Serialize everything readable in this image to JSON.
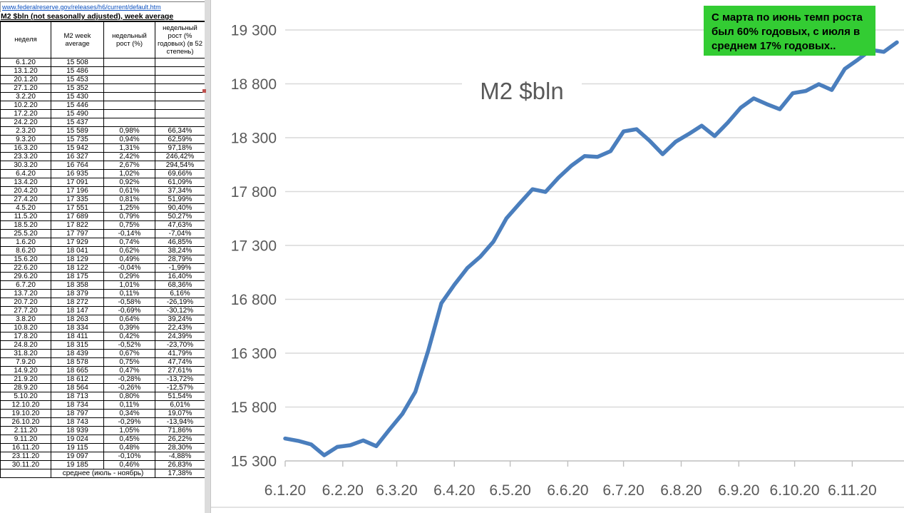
{
  "source_link": "www.federalreserve.gov/releases/h6/current/default.htm",
  "table": {
    "title": "M2 $bln (not seasonally adjusted), week average",
    "columns": [
      "неделя",
      "M2 week average",
      "недельный рост (%)",
      "недельный рост (% годовых) (в 52 степень)"
    ],
    "rows": [
      [
        "6.1.20",
        "15 508",
        "",
        ""
      ],
      [
        "13.1.20",
        "15 486",
        "",
        ""
      ],
      [
        "20.1.20",
        "15 453",
        "",
        ""
      ],
      [
        "27.1.20",
        "15 352",
        "",
        ""
      ],
      [
        "3.2.20",
        "15 430",
        "",
        ""
      ],
      [
        "10.2.20",
        "15 446",
        "",
        ""
      ],
      [
        "17.2.20",
        "15 490",
        "",
        ""
      ],
      [
        "24.2.20",
        "15 437",
        "",
        ""
      ],
      [
        "2.3.20",
        "15 589",
        "0,98%",
        "66,34%"
      ],
      [
        "9.3.20",
        "15 735",
        "0,94%",
        "62,59%"
      ],
      [
        "16.3.20",
        "15 942",
        "1,31%",
        "97,18%"
      ],
      [
        "23.3.20",
        "16 327",
        "2,42%",
        "246,42%"
      ],
      [
        "30.3.20",
        "16 764",
        "2,67%",
        "294,54%"
      ],
      [
        "6.4.20",
        "16 935",
        "1,02%",
        "69,66%"
      ],
      [
        "13.4.20",
        "17 091",
        "0,92%",
        "61,09%"
      ],
      [
        "20.4.20",
        "17 196",
        "0,61%",
        "37,34%"
      ],
      [
        "27.4.20",
        "17 335",
        "0,81%",
        "51,99%"
      ],
      [
        "4.5.20",
        "17 551",
        "1,25%",
        "90,40%"
      ],
      [
        "11.5.20",
        "17 689",
        "0,79%",
        "50,27%"
      ],
      [
        "18.5.20",
        "17 822",
        "0,75%",
        "47,63%"
      ],
      [
        "25.5.20",
        "17 797",
        "-0,14%",
        "-7,04%"
      ],
      [
        "1.6.20",
        "17 929",
        "0,74%",
        "46,85%"
      ],
      [
        "8.6.20",
        "18 041",
        "0,62%",
        "38,24%"
      ],
      [
        "15.6.20",
        "18 129",
        "0,49%",
        "28,79%"
      ],
      [
        "22.6.20",
        "18 122",
        "-0,04%",
        "-1,99%"
      ],
      [
        "29.6.20",
        "18 175",
        "0,29%",
        "16,40%"
      ],
      [
        "6.7.20",
        "18 358",
        "1,01%",
        "68,36%"
      ],
      [
        "13.7.20",
        "18 379",
        "0,11%",
        "6,16%"
      ],
      [
        "20.7.20",
        "18 272",
        "-0,58%",
        "-26,19%"
      ],
      [
        "27.7.20",
        "18 147",
        "-0,69%",
        "-30,12%"
      ],
      [
        "3.8.20",
        "18 263",
        "0,64%",
        "39,24%"
      ],
      [
        "10.8.20",
        "18 334",
        "0,39%",
        "22,43%"
      ],
      [
        "17.8.20",
        "18 411",
        "0,42%",
        "24,39%"
      ],
      [
        "24.8.20",
        "18 315",
        "-0,52%",
        "-23,70%"
      ],
      [
        "31.8.20",
        "18 439",
        "0,67%",
        "41,79%"
      ],
      [
        "7.9.20",
        "18 578",
        "0,75%",
        "47,74%"
      ],
      [
        "14.9.20",
        "18 665",
        "0,47%",
        "27,61%"
      ],
      [
        "21.9.20",
        "18 612",
        "-0,28%",
        "-13,72%"
      ],
      [
        "28.9.20",
        "18 564",
        "-0,26%",
        "-12,57%"
      ],
      [
        "5.10.20",
        "18 713",
        "0,80%",
        "51,54%"
      ],
      [
        "12.10.20",
        "18 734",
        "0,11%",
        "6,01%"
      ],
      [
        "19.10.20",
        "18 797",
        "0,34%",
        "19,07%"
      ],
      [
        "26.10.20",
        "18 743",
        "-0,29%",
        "-13,94%"
      ],
      [
        "2.11.20",
        "18 939",
        "1,05%",
        "71,86%"
      ],
      [
        "9.11.20",
        "19 024",
        "0,45%",
        "26,22%"
      ],
      [
        "16.11.20",
        "19 115",
        "0,48%",
        "28,30%"
      ],
      [
        "23.11.20",
        "19 097",
        "-0,10%",
        "-4,88%"
      ],
      [
        "30.11.20",
        "19 185",
        "0,46%",
        "26,83%"
      ]
    ],
    "footer": {
      "label": "среднее (июль - ноябрь)",
      "value": "17,38%"
    }
  },
  "annotation": {
    "text": "С марта по июнь темп роста был 60% годовых, с июля в среднем 17% годовых..",
    "bg_color": "#33cc33"
  },
  "colors": {
    "hyperlink": "#0b50c0",
    "comment_marker": "#c0504d",
    "axis_text": "#595959",
    "gridline": "#d9d9d9"
  },
  "chart_data": {
    "type": "line",
    "title": "M2 $bln",
    "x": [
      "6.1.20",
      "13.1.20",
      "20.1.20",
      "27.1.20",
      "3.2.20",
      "10.2.20",
      "17.2.20",
      "24.2.20",
      "2.3.20",
      "9.3.20",
      "16.3.20",
      "23.3.20",
      "30.3.20",
      "6.4.20",
      "13.4.20",
      "20.4.20",
      "27.4.20",
      "4.5.20",
      "11.5.20",
      "18.5.20",
      "25.5.20",
      "1.6.20",
      "8.6.20",
      "15.6.20",
      "22.6.20",
      "29.6.20",
      "6.7.20",
      "13.7.20",
      "20.7.20",
      "27.7.20",
      "3.8.20",
      "10.8.20",
      "17.8.20",
      "24.8.20",
      "31.8.20",
      "7.9.20",
      "14.9.20",
      "21.9.20",
      "28.9.20",
      "5.10.20",
      "12.10.20",
      "19.10.20",
      "26.10.20",
      "2.11.20",
      "9.11.20",
      "16.11.20",
      "23.11.20",
      "30.11.20"
    ],
    "series": [
      {
        "name": "M2 week average",
        "color": "#4a7ebd",
        "values": [
          15508,
          15486,
          15453,
          15352,
          15430,
          15446,
          15490,
          15437,
          15589,
          15735,
          15942,
          16327,
          16764,
          16935,
          17091,
          17196,
          17335,
          17551,
          17689,
          17822,
          17797,
          17929,
          18041,
          18129,
          18122,
          18175,
          18358,
          18379,
          18272,
          18147,
          18263,
          18334,
          18411,
          18315,
          18439,
          18578,
          18665,
          18612,
          18564,
          18713,
          18734,
          18797,
          18743,
          18939,
          19024,
          19115,
          19097,
          19185
        ]
      }
    ],
    "x_tick_labels": [
      "6.1.20",
      "6.2.20",
      "6.3.20",
      "6.4.20",
      "6.5.20",
      "6.6.20",
      "6.7.20",
      "6.8.20",
      "6.9.20",
      "6.10.20",
      "6.11.20"
    ],
    "y_ticks": [
      15300,
      15800,
      16300,
      16800,
      17300,
      17800,
      18300,
      18800,
      19300
    ],
    "ylim": [
      15300,
      19300
    ],
    "grid": true,
    "legend": false
  }
}
